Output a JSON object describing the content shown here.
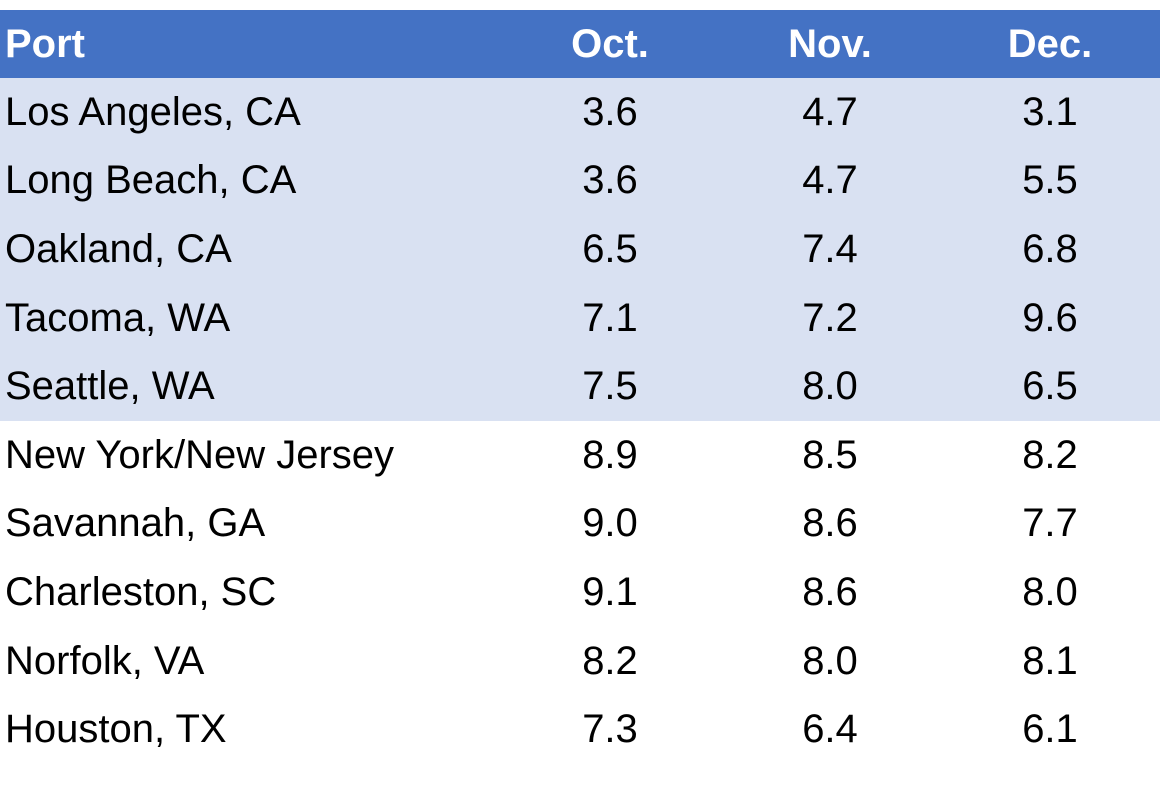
{
  "table": {
    "header": [
      "Port",
      "Oct.",
      "Nov.",
      "Dec."
    ],
    "rows": [
      [
        "Los Angeles, CA",
        "3.6",
        "4.7",
        "3.1"
      ],
      [
        "Long Beach, CA",
        "3.6",
        "4.7",
        "5.5"
      ],
      [
        "Oakland, CA",
        "6.5",
        "7.4",
        "6.8"
      ],
      [
        "Tacoma, WA",
        "7.1",
        "7.2",
        "9.6"
      ],
      [
        "Seattle, WA",
        "7.5",
        "8.0",
        "6.5"
      ],
      [
        "New York/New Jersey",
        "8.9",
        "8.5",
        "8.2"
      ],
      [
        "Savannah, GA",
        "9.0",
        "8.6",
        "7.7"
      ],
      [
        "Charleston, SC",
        "9.1",
        "8.6",
        "8.0"
      ],
      [
        "Norfolk, VA",
        "8.2",
        "8.0",
        "8.1"
      ],
      [
        "Houston, TX",
        "7.3",
        "6.4",
        "6.1"
      ]
    ]
  }
}
